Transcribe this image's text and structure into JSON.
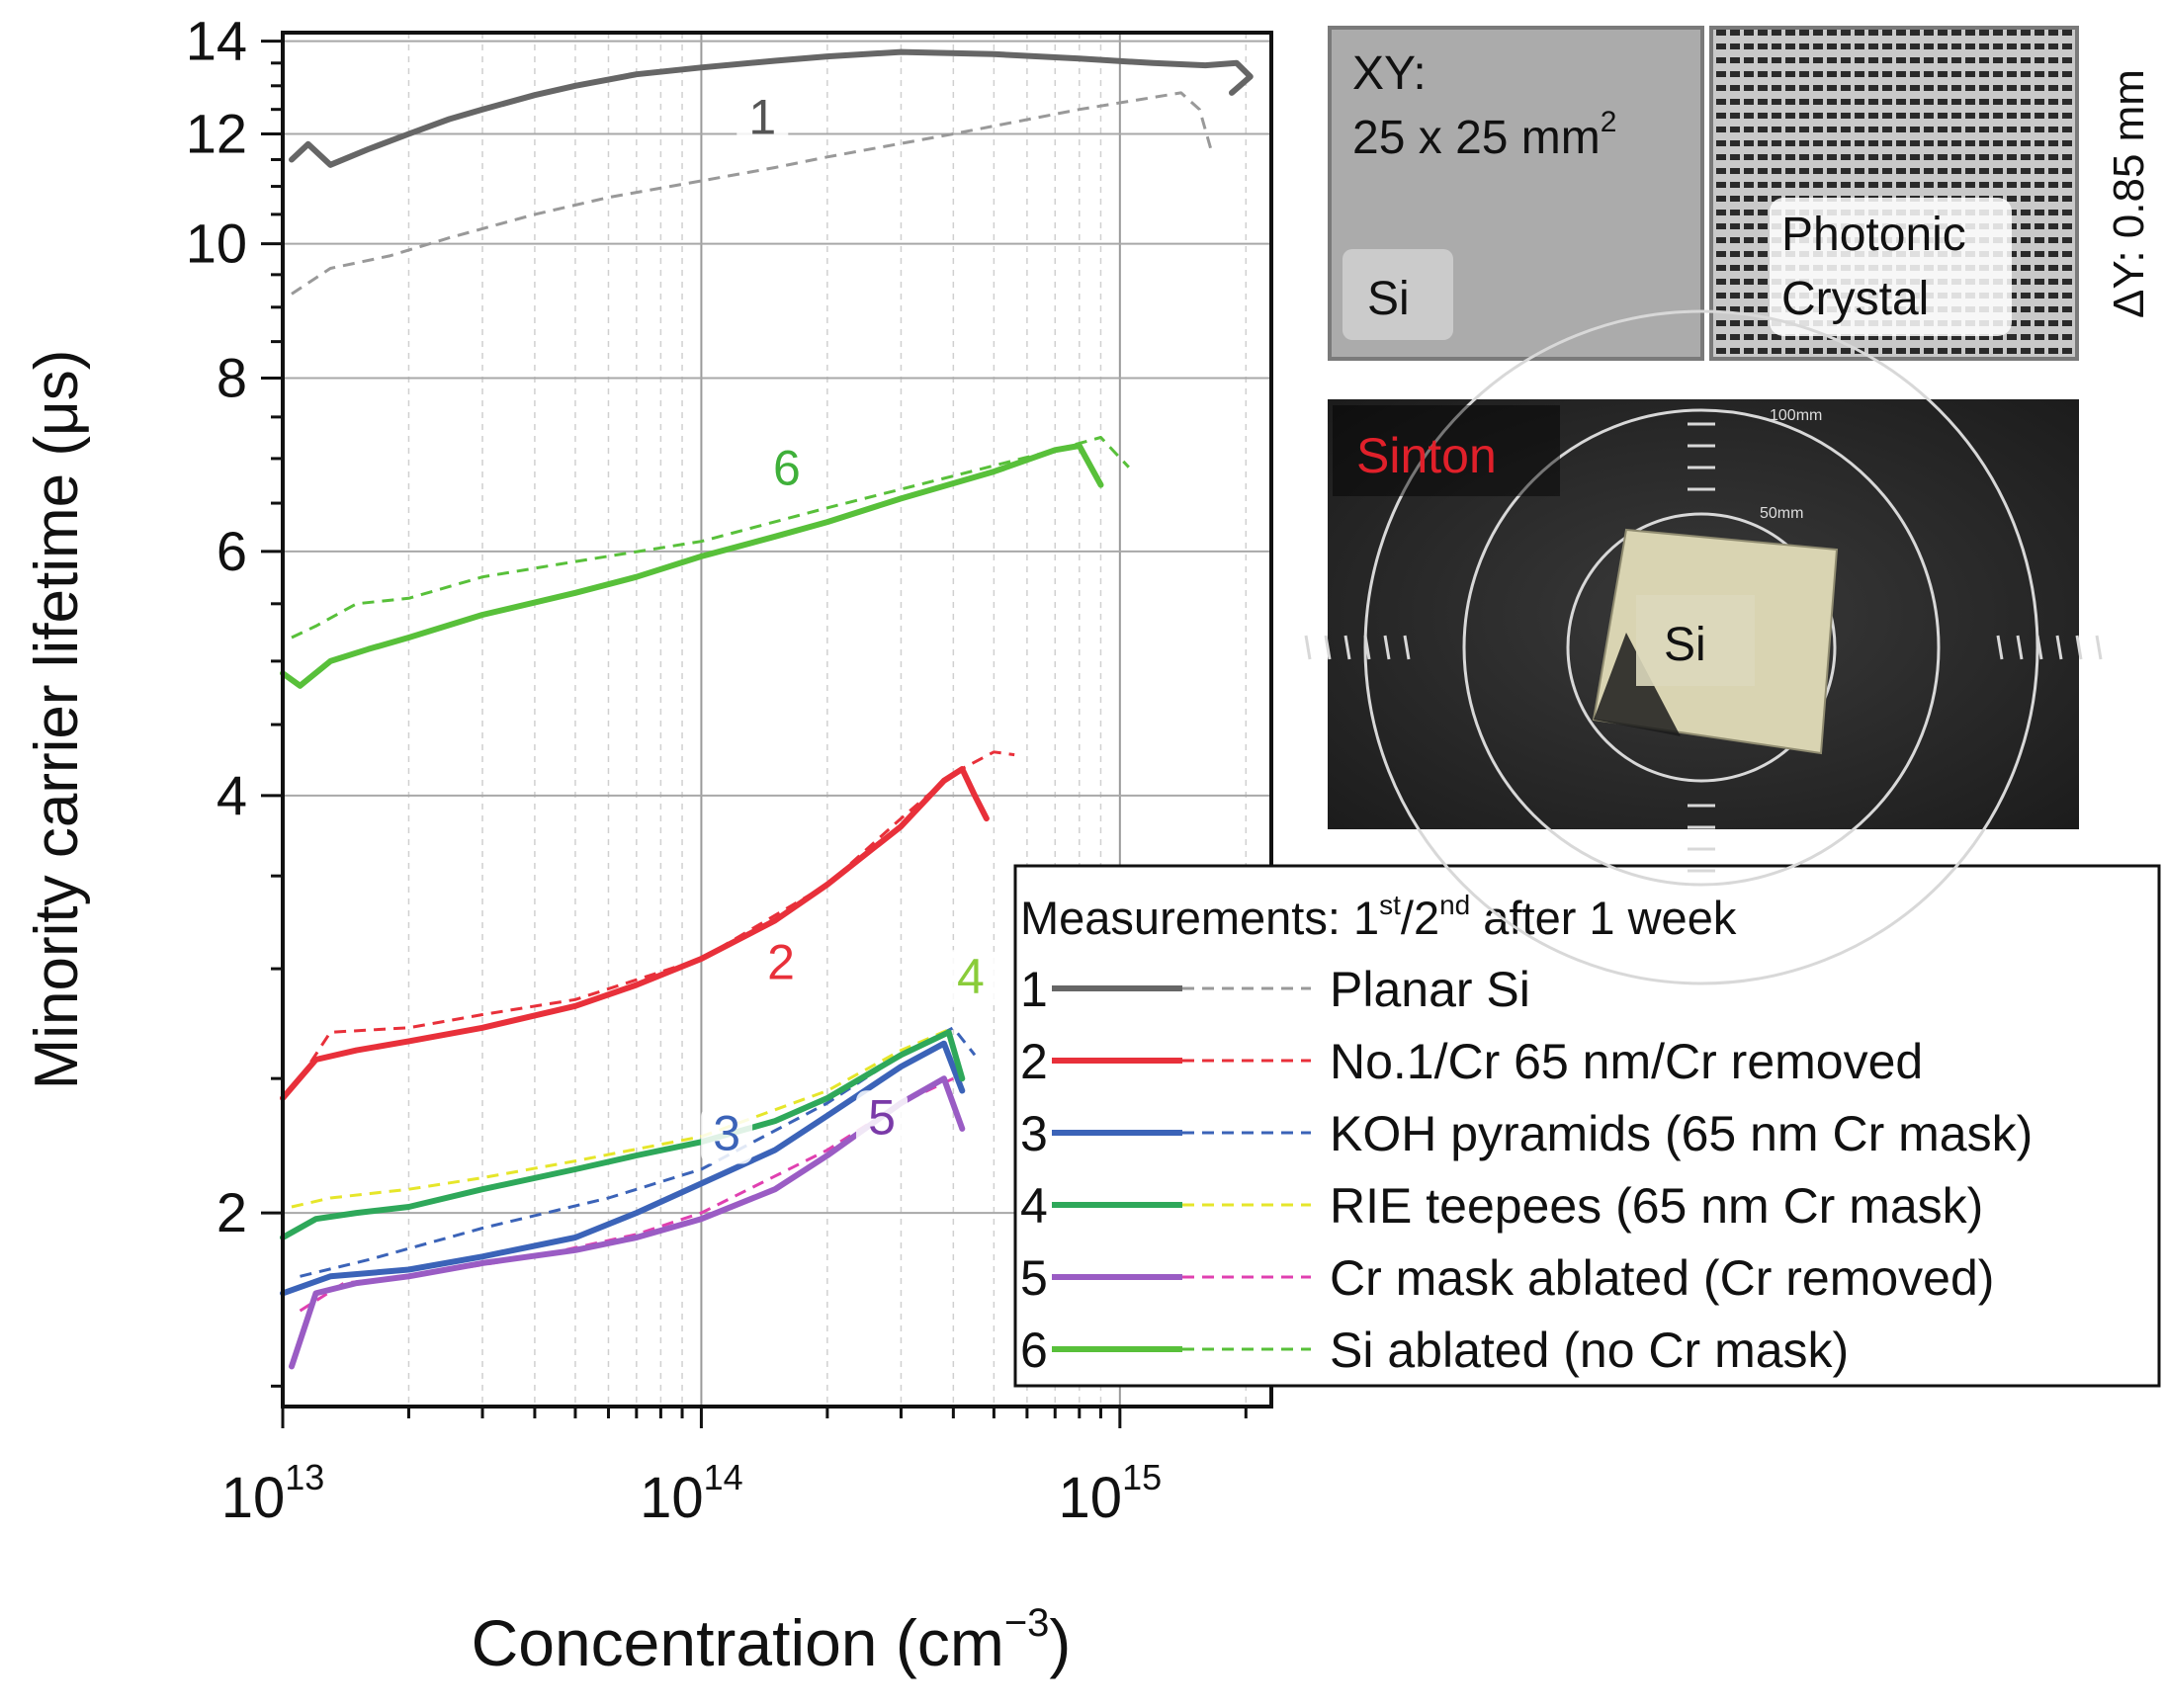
{
  "chart_data": {
    "type": "line",
    "title": "",
    "xlabel": "Concentration (cm",
    "xlabel_exp": "−3",
    "xlabel_close": ")",
    "ylabel": "Minority carrier lifetime (μs)",
    "xscale": "log",
    "yscale": "log",
    "xlim": [
      10000000000000.0,
      2300000000000000.0
    ],
    "ylim": [
      1.45,
      14.2
    ],
    "x_ticks": [
      {
        "value": 10000000000000.0,
        "base": "10",
        "exp": "13"
      },
      {
        "value": 100000000000000.0,
        "base": "10",
        "exp": "14"
      },
      {
        "value": 1000000000000000.0,
        "base": "10",
        "exp": "15"
      }
    ],
    "y_ticks": [
      {
        "value": 2,
        "label": "2"
      },
      {
        "value": 4,
        "label": "4"
      },
      {
        "value": 6,
        "label": "6"
      },
      {
        "value": 8,
        "label": "8"
      },
      {
        "value": 10,
        "label": "10"
      },
      {
        "value": 12,
        "label": "12"
      },
      {
        "value": 14,
        "label": "14"
      }
    ],
    "grid": true,
    "legend": {
      "placement": "bottom-right",
      "title_main": "Measurements: 1",
      "title_sup1": "st",
      "title_mid": "/2",
      "title_sup2": "nd",
      "title_end": " after 1 week"
    },
    "series": [
      {
        "id": "1",
        "name": "Planar Si",
        "color": "#666666",
        "dash_color": "#999999",
        "label_pos": [
          140000000000000.0,
          12.0
        ],
        "label_color": "#555555",
        "first": [
          [
            10500000000000.0,
            11.5
          ],
          [
            11500000000000.0,
            11.8
          ],
          [
            13000000000000.0,
            11.4
          ],
          [
            16000000000000.0,
            11.7
          ],
          [
            20000000000000.0,
            12.0
          ],
          [
            25000000000000.0,
            12.3
          ],
          [
            30000000000000.0,
            12.5
          ],
          [
            40000000000000.0,
            12.8
          ],
          [
            50000000000000.0,
            13.0
          ],
          [
            70000000000000.0,
            13.25
          ],
          [
            100000000000000.0,
            13.4
          ],
          [
            150000000000000.0,
            13.55
          ],
          [
            200000000000000.0,
            13.65
          ],
          [
            300000000000000.0,
            13.75
          ],
          [
            500000000000000.0,
            13.7
          ],
          [
            800000000000000.0,
            13.6
          ],
          [
            1200000000000000.0,
            13.5
          ],
          [
            1600000000000000.0,
            13.45
          ],
          [
            1900000000000000.0,
            13.5
          ],
          [
            2050000000000000.0,
            13.2
          ],
          [
            1850000000000000.0,
            12.85
          ]
        ],
        "second": [
          [
            10500000000000.0,
            9.2
          ],
          [
            13000000000000.0,
            9.6
          ],
          [
            18000000000000.0,
            9.8
          ],
          [
            25000000000000.0,
            10.1
          ],
          [
            40000000000000.0,
            10.5
          ],
          [
            60000000000000.0,
            10.8
          ],
          [
            100000000000000.0,
            11.1
          ],
          [
            150000000000000.0,
            11.35
          ],
          [
            200000000000000.0,
            11.55
          ],
          [
            400000000000000.0,
            12.0
          ],
          [
            800000000000000.0,
            12.5
          ],
          [
            1400000000000000.0,
            12.85
          ],
          [
            1550000000000000.0,
            12.5
          ],
          [
            1650000000000000.0,
            11.7
          ]
        ]
      },
      {
        "id": "2",
        "name": "No.1/Cr 65 nm/Cr removed",
        "color": "#e8303a",
        "dash_color": "#e8303a",
        "label_pos": [
          155000000000000.0,
          2.95
        ],
        "label_color": "#e8303a",
        "first": [
          [
            10000000000000.0,
            2.42
          ],
          [
            12000000000000.0,
            2.58
          ],
          [
            15000000000000.0,
            2.62
          ],
          [
            20000000000000.0,
            2.66
          ],
          [
            30000000000000.0,
            2.72
          ],
          [
            50000000000000.0,
            2.82
          ],
          [
            70000000000000.0,
            2.92
          ],
          [
            100000000000000.0,
            3.05
          ],
          [
            150000000000000.0,
            3.25
          ],
          [
            200000000000000.0,
            3.45
          ],
          [
            300000000000000.0,
            3.8
          ],
          [
            380000000000000.0,
            4.1
          ],
          [
            420000000000000.0,
            4.18
          ],
          [
            450000000000000.0,
            4.0
          ],
          [
            480000000000000.0,
            3.85
          ]
        ],
        "second": [
          [
            11000000000000.0,
            2.5
          ],
          [
            13000000000000.0,
            2.7
          ],
          [
            20000000000000.0,
            2.72
          ],
          [
            30000000000000.0,
            2.78
          ],
          [
            50000000000000.0,
            2.85
          ],
          [
            100000000000000.0,
            3.05
          ],
          [
            200000000000000.0,
            3.45
          ],
          [
            300000000000000.0,
            3.85
          ],
          [
            400000000000000.0,
            4.15
          ],
          [
            500000000000000.0,
            4.3
          ],
          [
            560000000000000.0,
            4.28
          ]
        ]
      },
      {
        "id": "3",
        "name": "KOH pyramids (65 nm Cr mask)",
        "color": "#3b63b8",
        "dash_color": "#3b63b8",
        "label_pos": [
          115000000000000.0,
          2.22
        ],
        "label_color": "#3b63b8",
        "first": [
          [
            10000000000000.0,
            1.75
          ],
          [
            13000000000000.0,
            1.8
          ],
          [
            20000000000000.0,
            1.82
          ],
          [
            30000000000000.0,
            1.86
          ],
          [
            50000000000000.0,
            1.92
          ],
          [
            70000000000000.0,
            2.0
          ],
          [
            100000000000000.0,
            2.1
          ],
          [
            150000000000000.0,
            2.22
          ],
          [
            200000000000000.0,
            2.35
          ],
          [
            300000000000000.0,
            2.55
          ],
          [
            380000000000000.0,
            2.65
          ],
          [
            420000000000000.0,
            2.45
          ]
        ],
        "second": [
          [
            11000000000000.0,
            1.8
          ],
          [
            16000000000000.0,
            1.85
          ],
          [
            30000000000000.0,
            1.95
          ],
          [
            60000000000000.0,
            2.05
          ],
          [
            100000000000000.0,
            2.15
          ],
          [
            200000000000000.0,
            2.4
          ],
          [
            300000000000000.0,
            2.6
          ],
          [
            400000000000000.0,
            2.72
          ],
          [
            450000000000000.0,
            2.6
          ]
        ]
      },
      {
        "id": "4",
        "name": "RIE teepees (65 nm Cr mask)",
        "color": "#2ea85a",
        "dash_color": "#e6e62a",
        "label_pos": [
          440000000000000.0,
          2.88
        ],
        "label_color": "#8acc3a",
        "first": [
          [
            10000000000000.0,
            1.92
          ],
          [
            12000000000000.0,
            1.98
          ],
          [
            15000000000000.0,
            2.0
          ],
          [
            20000000000000.0,
            2.02
          ],
          [
            30000000000000.0,
            2.08
          ],
          [
            50000000000000.0,
            2.15
          ],
          [
            70000000000000.0,
            2.2
          ],
          [
            100000000000000.0,
            2.25
          ],
          [
            150000000000000.0,
            2.33
          ],
          [
            200000000000000.0,
            2.42
          ],
          [
            300000000000000.0,
            2.6
          ],
          [
            390000000000000.0,
            2.7
          ],
          [
            420000000000000.0,
            2.5
          ]
        ],
        "second": [
          [
            10500000000000.0,
            2.02
          ],
          [
            13000000000000.0,
            2.05
          ],
          [
            20000000000000.0,
            2.08
          ],
          [
            30000000000000.0,
            2.12
          ],
          [
            50000000000000.0,
            2.18
          ],
          [
            100000000000000.0,
            2.27
          ],
          [
            200000000000000.0,
            2.45
          ],
          [
            300000000000000.0,
            2.62
          ],
          [
            400000000000000.0,
            2.72
          ]
        ]
      },
      {
        "id": "5",
        "name": "Cr mask ablated (Cr removed)",
        "color": "#9a5cc4",
        "dash_color": "#e040b0",
        "label_pos": [
          270000000000000.0,
          2.28
        ],
        "label_color": "#7a3aa8",
        "first": [
          [
            10500000000000.0,
            1.55
          ],
          [
            12000000000000.0,
            1.75
          ],
          [
            15000000000000.0,
            1.78
          ],
          [
            20000000000000.0,
            1.8
          ],
          [
            30000000000000.0,
            1.84
          ],
          [
            50000000000000.0,
            1.88
          ],
          [
            70000000000000.0,
            1.92
          ],
          [
            100000000000000.0,
            1.98
          ],
          [
            150000000000000.0,
            2.08
          ],
          [
            200000000000000.0,
            2.2
          ],
          [
            300000000000000.0,
            2.4
          ],
          [
            380000000000000.0,
            2.5
          ],
          [
            420000000000000.0,
            2.3
          ]
        ],
        "second": [
          [
            11000000000000.0,
            1.7
          ],
          [
            14000000000000.0,
            1.78
          ],
          [
            20000000000000.0,
            1.8
          ],
          [
            40000000000000.0,
            1.86
          ],
          [
            70000000000000.0,
            1.93
          ],
          [
            100000000000000.0,
            2.0
          ],
          [
            200000000000000.0,
            2.22
          ],
          [
            300000000000000.0,
            2.4
          ],
          [
            400000000000000.0,
            2.5
          ]
        ]
      },
      {
        "id": "6",
        "name": "Si ablated (no Cr mask)",
        "color": "#58c03a",
        "dash_color": "#58c03a",
        "label_pos": [
          160000000000000.0,
          6.7
        ],
        "label_color": "#3fb03a",
        "first": [
          [
            10000000000000.0,
            4.9
          ],
          [
            11000000000000.0,
            4.8
          ],
          [
            13000000000000.0,
            5.0
          ],
          [
            16000000000000.0,
            5.1
          ],
          [
            20000000000000.0,
            5.2
          ],
          [
            30000000000000.0,
            5.4
          ],
          [
            50000000000000.0,
            5.6
          ],
          [
            70000000000000.0,
            5.75
          ],
          [
            100000000000000.0,
            5.95
          ],
          [
            150000000000000.0,
            6.15
          ],
          [
            200000000000000.0,
            6.3
          ],
          [
            300000000000000.0,
            6.55
          ],
          [
            500000000000000.0,
            6.85
          ],
          [
            700000000000000.0,
            7.1
          ],
          [
            800000000000000.0,
            7.15
          ],
          [
            900000000000000.0,
            6.7
          ]
        ],
        "second": [
          [
            10500000000000.0,
            5.2
          ],
          [
            12000000000000.0,
            5.3
          ],
          [
            15000000000000.0,
            5.5
          ],
          [
            20000000000000.0,
            5.55
          ],
          [
            30000000000000.0,
            5.75
          ],
          [
            50000000000000.0,
            5.9
          ],
          [
            100000000000000.0,
            6.1
          ],
          [
            200000000000000.0,
            6.45
          ],
          [
            400000000000000.0,
            6.8
          ],
          [
            700000000000000.0,
            7.1
          ],
          [
            900000000000000.0,
            7.25
          ],
          [
            1050000000000000.0,
            6.9
          ]
        ]
      }
    ]
  },
  "inset_top": {
    "left_label_line1": "XY:",
    "left_label_line2": "25 x 25 mm",
    "left_label_sup": "2",
    "left_si": "Si",
    "right_label_line1": "Photonic",
    "right_label_line2": "Crystal",
    "side_label": "ΔY: 0.85 mm"
  },
  "inset_photo": {
    "brand": "Sinton",
    "sample": "Si",
    "ring_outer": "100mm",
    "ring_inner": "50mm"
  },
  "curve_labels": [
    "1",
    "2",
    "3",
    "4",
    "5",
    "6"
  ]
}
